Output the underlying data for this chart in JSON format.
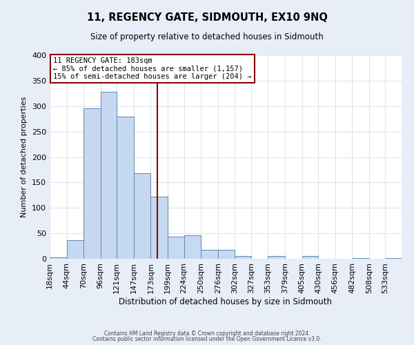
{
  "title": "11, REGENCY GATE, SIDMOUTH, EX10 9NQ",
  "subtitle": "Size of property relative to detached houses in Sidmouth",
  "xlabel": "Distribution of detached houses by size in Sidmouth",
  "ylabel": "Number of detached properties",
  "footer_line1": "Contains HM Land Registry data © Crown copyright and database right 2024.",
  "footer_line2": "Contains public sector information licensed under the Open Government Licence v3.0.",
  "bin_labels": [
    "18sqm",
    "44sqm",
    "70sqm",
    "96sqm",
    "121sqm",
    "147sqm",
    "173sqm",
    "199sqm",
    "224sqm",
    "250sqm",
    "276sqm",
    "302sqm",
    "327sqm",
    "353sqm",
    "379sqm",
    "405sqm",
    "430sqm",
    "456sqm",
    "482sqm",
    "508sqm",
    "533sqm"
  ],
  "bin_edges": [
    18,
    44,
    70,
    96,
    121,
    147,
    173,
    199,
    224,
    250,
    276,
    302,
    327,
    353,
    379,
    405,
    430,
    456,
    482,
    508,
    533
  ],
  "bar_heights": [
    3,
    37,
    295,
    328,
    280,
    168,
    122,
    43,
    46,
    17,
    17,
    5,
    0,
    5,
    0,
    6,
    0,
    0,
    1,
    0,
    2
  ],
  "bar_color": "#c6d9f0",
  "bar_edge_color": "#5a8ab0",
  "property_value": 183,
  "vline_color": "#8b0000",
  "annotation_text_line1": "11 REGENCY GATE: 183sqm",
  "annotation_text_line2": "← 85% of detached houses are smaller (1,157)",
  "annotation_text_line3": "15% of semi-detached houses are larger (204) →",
  "annotation_box_color": "#8b0000",
  "ylim": [
    0,
    400
  ],
  "plot_bg_color": "#ffffff",
  "fig_bg_color": "#e8eef8",
  "grid_color": "#dde5f0"
}
